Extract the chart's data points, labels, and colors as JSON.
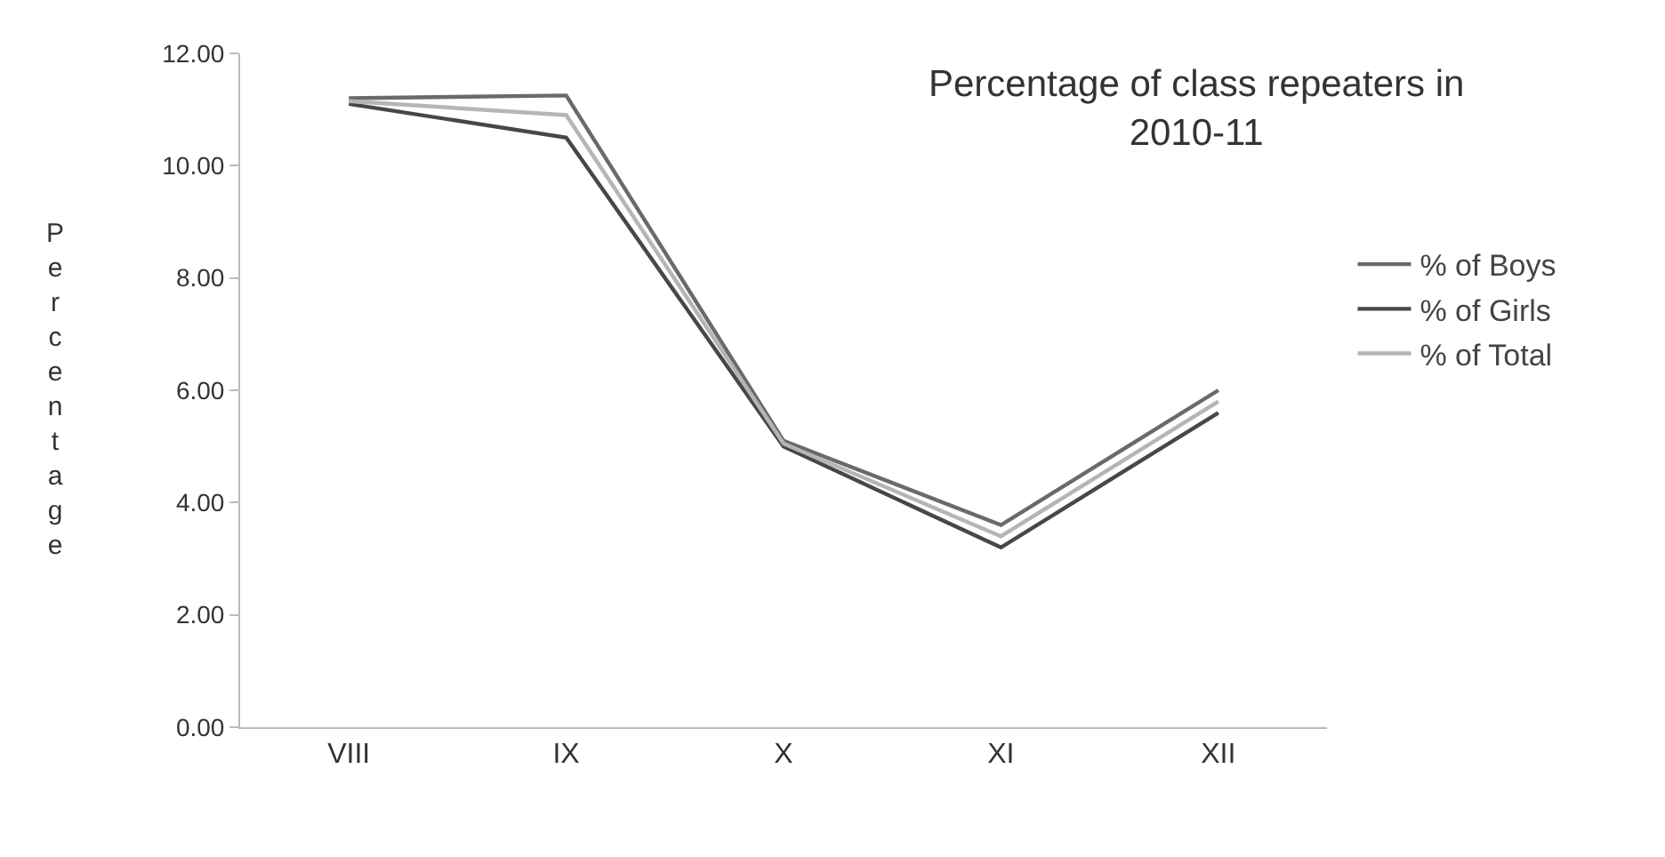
{
  "chart_data": {
    "type": "line",
    "title": "Percentage of class repeaters in 2010-11",
    "ylabel": "Percentage",
    "categories": [
      "VIII",
      "IX",
      "X",
      "XI",
      "XII"
    ],
    "series": [
      {
        "name": "% of Boys",
        "color": "#6a6a6a",
        "values": [
          11.2,
          11.25,
          5.1,
          3.6,
          6.0
        ]
      },
      {
        "name": "% of Girls",
        "color": "#474747",
        "values": [
          11.1,
          10.5,
          5.0,
          3.2,
          5.6
        ]
      },
      {
        "name": "% of Total",
        "color": "#b5b5b5",
        "values": [
          11.15,
          10.9,
          5.05,
          3.4,
          5.8
        ]
      }
    ],
    "ylim": [
      0,
      12
    ],
    "yticks": [
      {
        "value": 0,
        "label": "0.00"
      },
      {
        "value": 2,
        "label": "2.00"
      },
      {
        "value": 4,
        "label": "4.00"
      },
      {
        "value": 6,
        "label": "6.00"
      },
      {
        "value": 8,
        "label": "8.00"
      },
      {
        "value": 10,
        "label": "10.00"
      },
      {
        "value": 12,
        "label": "12.00"
      }
    ],
    "legend": "right",
    "marker": "none",
    "line_style": "solid"
  }
}
